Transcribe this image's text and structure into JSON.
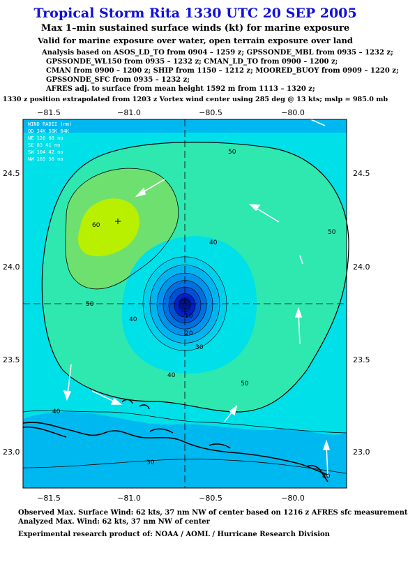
{
  "header": {
    "title": "Tropical Storm Rita 1330 UTC 20 SEP 2005",
    "subtitle": "Max 1–min sustained surface winds (kt) for marine exposure",
    "subtitle2": "Valid for marine exposure over water, open terrain exposure over land"
  },
  "sources": [
    "Analysis based on  ASOS_LD_TO from 0904 – 1259 z;  GPSSONDE_MBL from 0935 – 1232 z;",
    "GPSSONDE_WL150 from 0935 – 1232 z;  CMAN_LD_TO from 0900 – 1200 z;",
    "CMAN from 0900 – 1200 z;  SHIP from 1150 – 1212 z;  MOORED_BUOY from 0909 – 1220 z;",
    "GPSSONDE_SFC from 0935 – 1232 z;",
    "AFRES adj. to surface from mean height 1592 m from 1113 – 1320 z;"
  ],
  "position_note": "1330 z position extrapolated from 1203 z Vortex wind center using 285 deg @ 13 kts; mslp = 985.0 mb",
  "map": {
    "x_ticks": [
      "−81.5",
      "−81.0",
      "−80.5",
      "−80.0"
    ],
    "y_ticks": [
      "24.5",
      "24.0",
      "23.5",
      "23.0"
    ],
    "contour_labels": [
      "50",
      "50",
      "50",
      "50",
      "60",
      "40",
      "40",
      "40",
      "30",
      "20",
      "10",
      "40",
      "30",
      "40"
    ],
    "legend": {
      "title": "WIND RADII (nm)",
      "header": "QD 34K 50K 64K",
      "rows": [
        {
          "q": "NE",
          "a": "126",
          "b": "68",
          "c": "no"
        },
        {
          "q": "SE",
          "a": "83",
          "b": "41",
          "c": "no"
        },
        {
          "q": "SW",
          "a": "104",
          "b": "42",
          "c": "no"
        },
        {
          "q": "NW",
          "a": "105",
          "b": "56",
          "c": "no"
        }
      ]
    },
    "colors": {
      "ocean_low": "#1a8ae0",
      "c30": "#00b8f0",
      "c40": "#00e0e8",
      "c50": "#2ee8b0",
      "c60": "#6ee070",
      "c70": "#b8f000",
      "core": "#0020c8"
    }
  },
  "footer": {
    "line1": "Observed Max. Surface Wind: 62 kts, 37 nm NW of center based on 1216 z AFRES sfc measurement",
    "line2": "Analyzed Max. Wind: 62 kts, 37 nm NW of center",
    "line3": "Experimental research product of:  NOAA / AOML / Hurricane Research Division"
  }
}
